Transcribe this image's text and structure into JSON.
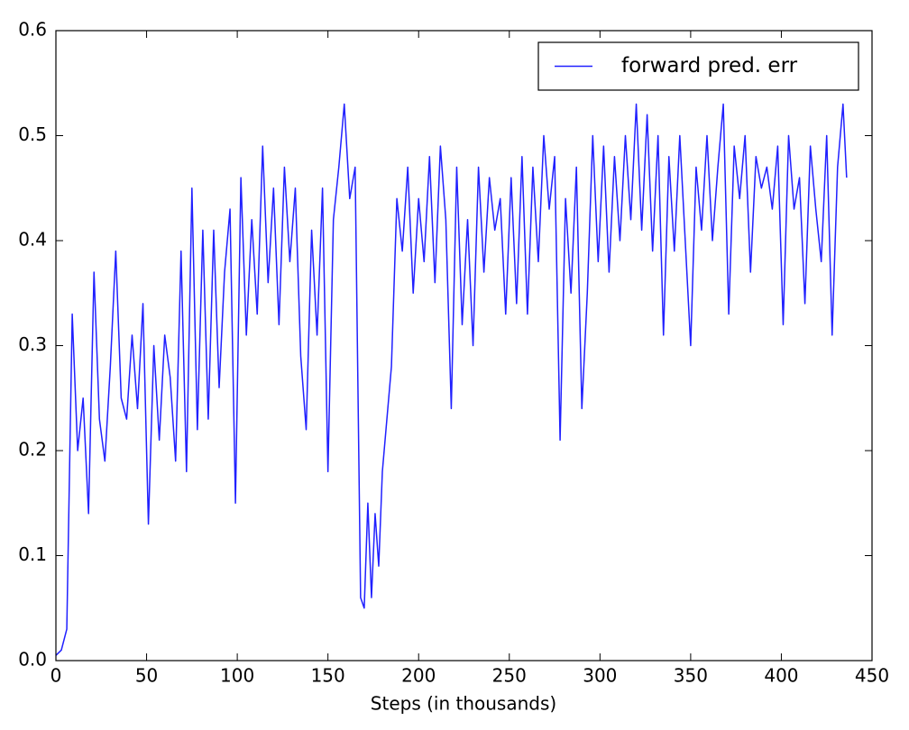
{
  "chart_data": {
    "type": "line",
    "xlabel": "Steps (in thousands)",
    "x": [
      0,
      3,
      6,
      9,
      12,
      15,
      18,
      21,
      24,
      27,
      30,
      33,
      36,
      39,
      42,
      45,
      48,
      51,
      54,
      57,
      60,
      63,
      66,
      69,
      72,
      75,
      78,
      81,
      84,
      87,
      90,
      93,
      96,
      99,
      102,
      105,
      108,
      111,
      114,
      117,
      120,
      123,
      126,
      129,
      132,
      135,
      138,
      141,
      144,
      147,
      150,
      153,
      156,
      159,
      162,
      165,
      168,
      170,
      172,
      174,
      176,
      178,
      180,
      182,
      185,
      188,
      191,
      194,
      197,
      200,
      203,
      206,
      209,
      212,
      215,
      218,
      221,
      224,
      227,
      230,
      233,
      236,
      239,
      242,
      245,
      248,
      251,
      254,
      257,
      260,
      263,
      266,
      269,
      272,
      275,
      278,
      281,
      284,
      287,
      290,
      293,
      296,
      299,
      302,
      305,
      308,
      311,
      314,
      317,
      320,
      323,
      326,
      329,
      332,
      335,
      338,
      341,
      344,
      347,
      350,
      353,
      356,
      359,
      362,
      365,
      368,
      371,
      374,
      377,
      380,
      383,
      386,
      389,
      392,
      395,
      398,
      401,
      404,
      407,
      410,
      413,
      416,
      419,
      422,
      425,
      428,
      431,
      434,
      436
    ],
    "series": [
      {
        "name": "forward pred. err",
        "color": "#2020ff",
        "values": [
          0.005,
          0.01,
          0.03,
          0.33,
          0.2,
          0.25,
          0.14,
          0.37,
          0.23,
          0.19,
          0.28,
          0.39,
          0.25,
          0.23,
          0.31,
          0.24,
          0.34,
          0.13,
          0.3,
          0.21,
          0.31,
          0.27,
          0.19,
          0.39,
          0.18,
          0.45,
          0.22,
          0.41,
          0.23,
          0.41,
          0.26,
          0.37,
          0.43,
          0.15,
          0.46,
          0.31,
          0.42,
          0.33,
          0.49,
          0.36,
          0.45,
          0.32,
          0.47,
          0.38,
          0.45,
          0.29,
          0.22,
          0.41,
          0.31,
          0.45,
          0.18,
          0.42,
          0.47,
          0.53,
          0.44,
          0.47,
          0.06,
          0.05,
          0.15,
          0.06,
          0.14,
          0.09,
          0.18,
          0.22,
          0.28,
          0.44,
          0.39,
          0.47,
          0.35,
          0.44,
          0.38,
          0.48,
          0.36,
          0.49,
          0.42,
          0.24,
          0.47,
          0.32,
          0.42,
          0.3,
          0.47,
          0.37,
          0.46,
          0.41,
          0.44,
          0.33,
          0.46,
          0.34,
          0.48,
          0.33,
          0.47,
          0.38,
          0.5,
          0.43,
          0.48,
          0.21,
          0.44,
          0.35,
          0.47,
          0.24,
          0.35,
          0.5,
          0.38,
          0.49,
          0.37,
          0.48,
          0.4,
          0.5,
          0.42,
          0.53,
          0.41,
          0.52,
          0.39,
          0.5,
          0.31,
          0.48,
          0.39,
          0.5,
          0.4,
          0.3,
          0.47,
          0.41,
          0.5,
          0.4,
          0.47,
          0.53,
          0.33,
          0.49,
          0.44,
          0.5,
          0.37,
          0.48,
          0.45,
          0.47,
          0.43,
          0.49,
          0.32,
          0.5,
          0.43,
          0.46,
          0.34,
          0.49,
          0.43,
          0.38,
          0.5,
          0.31,
          0.47,
          0.53,
          0.46
        ]
      }
    ],
    "xlim": [
      0,
      450
    ],
    "xticks": [
      0,
      50,
      100,
      150,
      200,
      250,
      300,
      350,
      400,
      450
    ],
    "ylim": [
      0,
      0.6
    ],
    "yticks": [
      {
        "value": 0,
        "label": "0.0"
      },
      0.1,
      0.2,
      0.3,
      0.4,
      0.5,
      0.6
    ],
    "legend": "upper right",
    "grid": false
  }
}
